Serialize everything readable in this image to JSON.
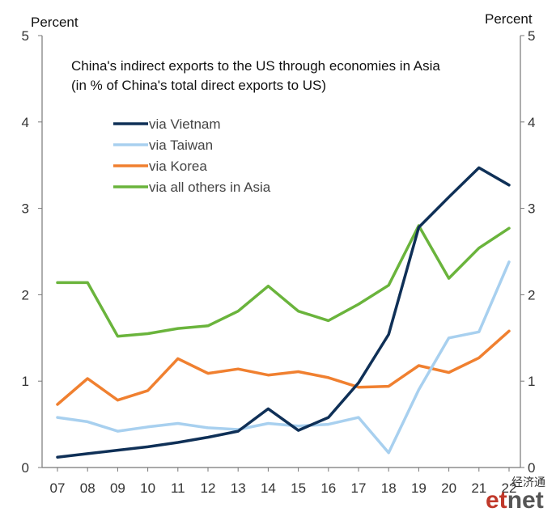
{
  "chart_data": {
    "type": "line",
    "title_lines": [
      "China's indirect exports to the US through economies in Asia",
      "(in % of China's total direct exports to US)"
    ],
    "left_axis_unit": "Percent",
    "right_axis_unit": "Percent",
    "categories": [
      "07",
      "08",
      "09",
      "10",
      "11",
      "12",
      "13",
      "14",
      "15",
      "16",
      "17",
      "18",
      "19",
      "20",
      "21",
      "22"
    ],
    "y_ticks": [
      "0",
      "1",
      "2",
      "3",
      "4",
      "5"
    ],
    "ylim": [
      0,
      5
    ],
    "grid": false,
    "legend_position": "top-left",
    "series": [
      {
        "name": "via Vietnam",
        "color": "#0f3057",
        "values": [
          0.12,
          0.16,
          0.2,
          0.24,
          0.29,
          0.35,
          0.42,
          0.68,
          0.43,
          0.58,
          0.98,
          1.54,
          2.78,
          3.13,
          3.47,
          3.27
        ]
      },
      {
        "name": "via Taiwan",
        "color": "#a8d0ef",
        "values": [
          0.58,
          0.53,
          0.42,
          0.47,
          0.51,
          0.46,
          0.44,
          0.51,
          0.48,
          0.5,
          0.58,
          0.17,
          0.9,
          1.5,
          1.57,
          2.38
        ]
      },
      {
        "name": "via Korea",
        "color": "#f08030",
        "values": [
          0.73,
          1.03,
          0.78,
          0.89,
          1.26,
          1.09,
          1.14,
          1.07,
          1.11,
          1.04,
          0.93,
          0.94,
          1.18,
          1.1,
          1.27,
          1.58
        ]
      },
      {
        "name": "via all others in Asia",
        "color": "#6ab43c",
        "values": [
          2.14,
          2.14,
          1.52,
          1.55,
          1.61,
          1.64,
          1.81,
          2.1,
          1.81,
          1.7,
          1.89,
          2.11,
          2.8,
          2.19,
          2.54,
          2.77
        ]
      }
    ]
  },
  "watermark": {
    "chinese": "经济通",
    "logo_prefix": "et",
    "logo_suffix": "net",
    "logo_prefix_color": "#c0392b",
    "logo_suffix_color": "#555555"
  }
}
